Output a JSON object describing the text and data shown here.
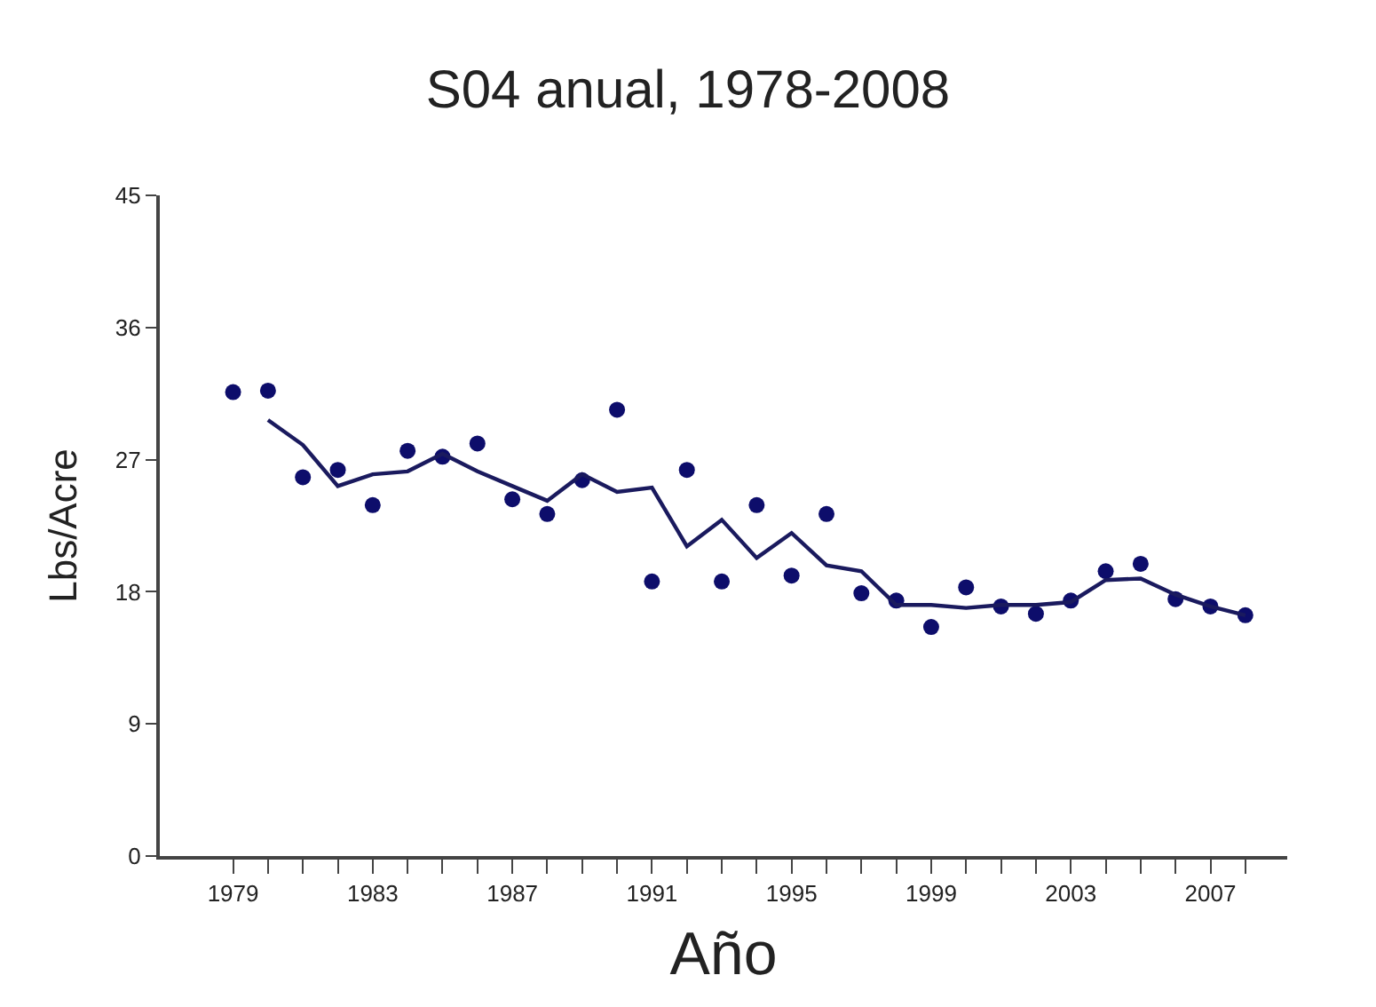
{
  "chart_data": {
    "type": "scatter",
    "title": "S04 anual, 1978-2008",
    "xlabel": "Año",
    "ylabel": "Lbs/Acre",
    "x": [
      1979,
      1980,
      1981,
      1982,
      1983,
      1984,
      1985,
      1986,
      1987,
      1988,
      1989,
      1990,
      1991,
      1992,
      1993,
      1994,
      1995,
      1996,
      1997,
      1998,
      1999,
      2000,
      2001,
      2002,
      2003,
      2004,
      2005,
      2006,
      2007,
      2008
    ],
    "series": [
      {
        "color": "#0d0d6b",
        "marker": "circle",
        "values": [
          31.6,
          31.7,
          25.8,
          26.3,
          23.9,
          27.6,
          27.2,
          28.1,
          24.3,
          23.3,
          25.6,
          30.4,
          18.7,
          26.3,
          18.7,
          23.9,
          19.1,
          23.3,
          17.9,
          17.4,
          15.6,
          18.3,
          17.0,
          16.5,
          17.4,
          19.4,
          19.9,
          17.5,
          17.0,
          16.4
        ]
      },
      {
        "type": "line",
        "color": "#1a1a5e",
        "marker": "none",
        "line_style": "solid",
        "x": [
          1980,
          1981,
          1982,
          1983,
          1984,
          1985,
          1986,
          1987,
          1988,
          1989,
          1990,
          1991,
          1992,
          1993,
          1994,
          1995,
          1996,
          1997,
          1998,
          1999,
          2000,
          2001,
          2002,
          2003,
          2004,
          2005,
          2006,
          2007,
          2008
        ],
        "values": [
          29.7,
          28.0,
          25.2,
          26.0,
          26.2,
          27.4,
          26.2,
          25.2,
          24.2,
          26.0,
          24.8,
          25.1,
          21.1,
          22.9,
          20.3,
          22.0,
          19.8,
          19.4,
          17.1,
          17.1,
          16.9,
          17.1,
          17.1,
          17.3,
          18.8,
          18.9,
          17.8,
          17.0,
          16.4
        ]
      }
    ],
    "xlim": [
      1976.9,
      2009.2
    ],
    "xticks": [
      1979,
      {
        "value": 1980,
        "label": null
      },
      {
        "value": 1981,
        "label": null
      },
      {
        "value": 1982,
        "label": null
      },
      1983,
      {
        "value": 1984,
        "label": null
      },
      {
        "value": 1985,
        "label": null
      },
      {
        "value": 1986,
        "label": null
      },
      1987,
      {
        "value": 1988,
        "label": null
      },
      {
        "value": 1989,
        "label": null
      },
      {
        "value": 1990,
        "label": null
      },
      1991,
      {
        "value": 1992,
        "label": null
      },
      {
        "value": 1993,
        "label": null
      },
      {
        "value": 1994,
        "label": null
      },
      1995,
      {
        "value": 1996,
        "label": null
      },
      {
        "value": 1997,
        "label": null
      },
      {
        "value": 1998,
        "label": null
      },
      1999,
      {
        "value": 2000,
        "label": null
      },
      {
        "value": 2001,
        "label": null
      },
      {
        "value": 2002,
        "label": null
      },
      2003,
      {
        "value": 2004,
        "label": null
      },
      {
        "value": 2005,
        "label": null
      },
      {
        "value": 2006,
        "label": null
      },
      2007,
      {
        "value": 2008,
        "label": null
      }
    ],
    "ylim": [
      0,
      45
    ],
    "yticks": [
      0,
      9,
      18,
      27,
      36,
      45
    ]
  }
}
